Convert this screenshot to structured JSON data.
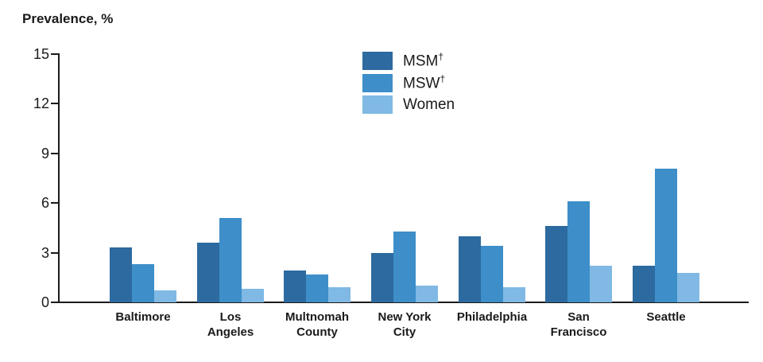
{
  "chart_data": {
    "type": "bar",
    "ylabel": "Prevalence, %",
    "ylim": [
      0,
      15
    ],
    "y_ticks": [
      0,
      3,
      6,
      9,
      12,
      15
    ],
    "grid": false,
    "legend_position": "top-center",
    "categories": [
      "Baltimore",
      "Los\nAngeles",
      "Multnomah\nCounty",
      "New York\nCity",
      "Philadelphia",
      "San\nFrancisco",
      "Seattle"
    ],
    "series": [
      {
        "name": "MSM",
        "sup": "†",
        "color": "#2d6a9f",
        "values": [
          3.3,
          3.6,
          1.9,
          3.0,
          4.0,
          4.6,
          2.2
        ]
      },
      {
        "name": "MSW",
        "sup": "†",
        "color": "#3d8ec9",
        "values": [
          2.3,
          5.1,
          1.7,
          4.3,
          3.4,
          6.1,
          8.1
        ]
      },
      {
        "name": "Women",
        "sup": "",
        "color": "#7fb9e4",
        "values": [
          0.7,
          0.8,
          0.9,
          1.0,
          0.9,
          2.2,
          1.8
        ]
      }
    ]
  }
}
